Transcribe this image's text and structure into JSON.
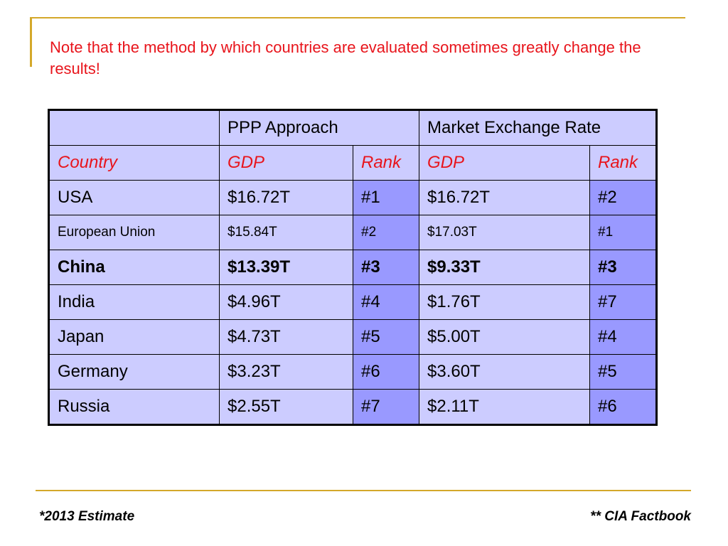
{
  "title": "Note that the method by which countries are evaluated sometimes greatly change the results!",
  "table": {
    "group_headers": [
      "PPP Approach",
      "Market Exchange Rate"
    ],
    "columns": [
      "Country",
      "GDP",
      "Rank",
      "GDP",
      "Rank"
    ],
    "rows": [
      [
        "USA",
        "$16.72T",
        "#1",
        "$16.72T",
        "#2"
      ],
      [
        "European Union",
        "$15.84T",
        "#2",
        "$17.03T",
        "#1"
      ],
      [
        "China",
        "$13.39T",
        "#3",
        "$9.33T",
        "#3"
      ],
      [
        "India",
        "$4.96T",
        "#4",
        "$1.76T",
        "#7"
      ],
      [
        "Japan",
        "$4.73T",
        "#5",
        "$5.00T",
        "#4"
      ],
      [
        "Germany",
        "$3.23T",
        "#6",
        "$3.60T",
        "#5"
      ],
      [
        "Russia",
        "$2.55T",
        "#7",
        "$2.11T",
        "#6"
      ]
    ]
  },
  "footer": {
    "left": "*2013 Estimate",
    "right": "** CIA Factbook"
  }
}
